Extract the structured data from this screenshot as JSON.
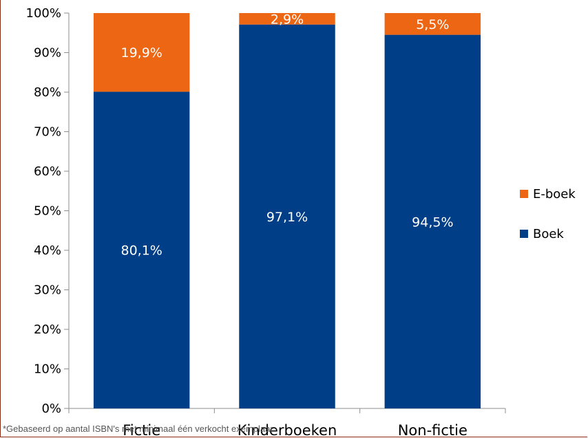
{
  "chart_data": {
    "type": "bar",
    "stacked": true,
    "percent": true,
    "categories": [
      "Fictie",
      "Kinderboeken",
      "Non-fictie"
    ],
    "series": [
      {
        "name": "Boek",
        "color": "#003f87",
        "values": [
          80.1,
          97.1,
          94.5
        ],
        "labels": [
          "80,1%",
          "97,1%",
          "94,5%"
        ]
      },
      {
        "name": "E-boek",
        "color": "#ec6613",
        "values": [
          19.9,
          2.9,
          5.5
        ],
        "labels": [
          "19,9%",
          "2,9%",
          "5,5%"
        ]
      }
    ],
    "ylim": [
      0,
      100
    ],
    "yticks": [
      "0%",
      "10%",
      "20%",
      "30%",
      "40%",
      "50%",
      "60%",
      "70%",
      "80%",
      "90%",
      "100%"
    ],
    "legend_position": "right",
    "legend_order": [
      "E-boek",
      "Boek"
    ],
    "grid": false
  },
  "footnote": "*Gebaseerd op aantal ISBN's met minimaal één verkocht exemplaar"
}
